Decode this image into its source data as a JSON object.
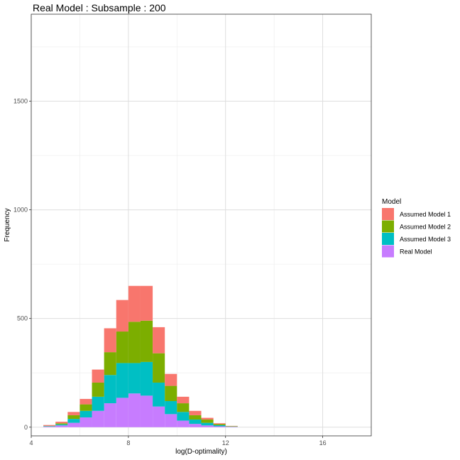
{
  "chart_data": {
    "type": "bar",
    "title": "Real Model : Subsample : 200",
    "xlabel": "log(D-optimality)",
    "ylabel": "Frequency",
    "xlim": [
      4,
      18
    ],
    "ylim": [
      -40,
      1900
    ],
    "x_ticks": [
      4,
      8,
      12,
      16
    ],
    "y_ticks": [
      0,
      500,
      1000,
      1500
    ],
    "bin_width": 0.5,
    "stacked": true,
    "bin_starts": [
      4.5,
      5.0,
      5.5,
      6.0,
      6.5,
      7.0,
      7.5,
      8.0,
      8.5,
      9.0,
      9.5,
      10.0,
      10.5,
      11.0,
      11.5,
      12.0
    ],
    "legend": {
      "title": "Model",
      "position": "right"
    },
    "grid": true,
    "series": [
      {
        "name": "Real Model",
        "color": "#C77CFF",
        "values": [
          3,
          8,
          20,
          45,
          75,
          110,
          135,
          155,
          145,
          95,
          60,
          30,
          15,
          8,
          4,
          2
        ]
      },
      {
        "name": "Assumed Model 3",
        "color": "#00BFC4",
        "values": [
          2,
          5,
          18,
          30,
          65,
          130,
          160,
          140,
          155,
          110,
          60,
          40,
          20,
          12,
          5,
          1
        ]
      },
      {
        "name": "Assumed Model 2",
        "color": "#7CAE00",
        "values": [
          1,
          5,
          17,
          30,
          65,
          105,
          145,
          190,
          190,
          135,
          70,
          40,
          20,
          15,
          5,
          2
        ]
      },
      {
        "name": "Assumed Model 1",
        "color": "#F8766D",
        "values": [
          4,
          7,
          15,
          25,
          60,
          110,
          145,
          165,
          160,
          120,
          55,
          30,
          20,
          8,
          4,
          1
        ]
      }
    ]
  }
}
